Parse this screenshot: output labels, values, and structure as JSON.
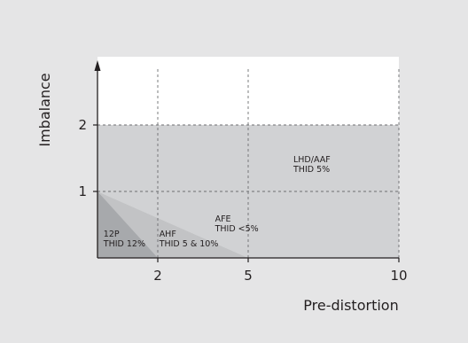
{
  "chart_data": {
    "type": "area",
    "xlabel": "Pre-distortion",
    "ylabel": "Imbalance",
    "x_ticks": [
      2,
      5,
      10
    ],
    "y_ticks": [
      1,
      2
    ],
    "grid": "dashed",
    "regions": [
      {
        "label": "LHD/AAF",
        "sublabel": "THID 5%",
        "polygon": [
          [
            0,
            0
          ],
          [
            10,
            0
          ],
          [
            10,
            2
          ],
          [
            0,
            2
          ]
        ],
        "color": "#d1d2d4"
      },
      {
        "label": "AFE",
        "sublabel": "THID <5%",
        "polygon": [
          [
            0,
            0
          ],
          [
            5,
            0
          ],
          [
            0,
            1
          ]
        ],
        "color": "#e6e7e8"
      },
      {
        "label": "AHF",
        "sublabel": "THID 5 & 10%",
        "polygon": [
          [
            0,
            0
          ],
          [
            5,
            0
          ],
          [
            0,
            1
          ]
        ],
        "color": "#c2c3c5"
      },
      {
        "label": "12P",
        "sublabel": "THID 12%",
        "polygon": [
          [
            0,
            0
          ],
          [
            2,
            0
          ],
          [
            0,
            1
          ]
        ],
        "color": "#a7a9ac"
      }
    ],
    "plot_background": "#ffffff",
    "axis_color": "#231f20"
  }
}
